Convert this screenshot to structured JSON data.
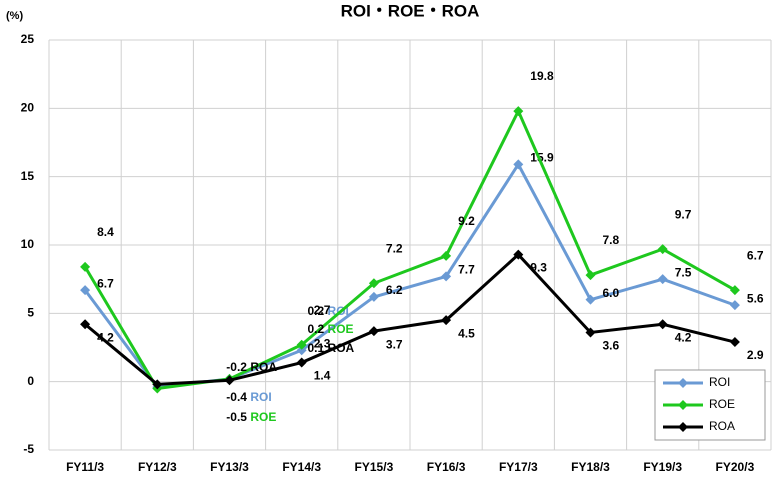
{
  "chart_data": {
    "type": "line",
    "title": "ROI・ROE・ROA",
    "y_unit": "(%)",
    "categories": [
      "FY11/3",
      "FY12/3",
      "FY13/3",
      "FY14/3",
      "FY15/3",
      "FY16/3",
      "FY17/3",
      "FY18/3",
      "FY19/3",
      "FY20/3"
    ],
    "series": [
      {
        "name": "ROI",
        "color": "#6a9ad4",
        "values": [
          6.7,
          -0.4,
          0.2,
          2.3,
          6.2,
          7.7,
          15.9,
          6.0,
          7.5,
          5.6
        ],
        "value_labels": [
          "6.7",
          "-0.4",
          "0.2",
          "2.3",
          "6.2",
          "7.7",
          "15.9",
          "6.0",
          "7.5",
          "5.6"
        ]
      },
      {
        "name": "ROE",
        "color": "#1ec81e",
        "values": [
          8.4,
          -0.5,
          0.2,
          2.7,
          7.2,
          9.2,
          19.8,
          7.8,
          9.7,
          6.7
        ]
      },
      {
        "name": "ROA",
        "color": "#000000",
        "values": [
          4.2,
          -0.2,
          0.1,
          1.4,
          3.7,
          4.5,
          9.3,
          3.6,
          4.2,
          2.9
        ]
      }
    ],
    "ylim": [
      -5,
      25
    ],
    "yticks": [
      -5,
      0,
      5,
      10,
      15,
      20,
      25
    ],
    "grid": true,
    "legend": "lower right"
  }
}
